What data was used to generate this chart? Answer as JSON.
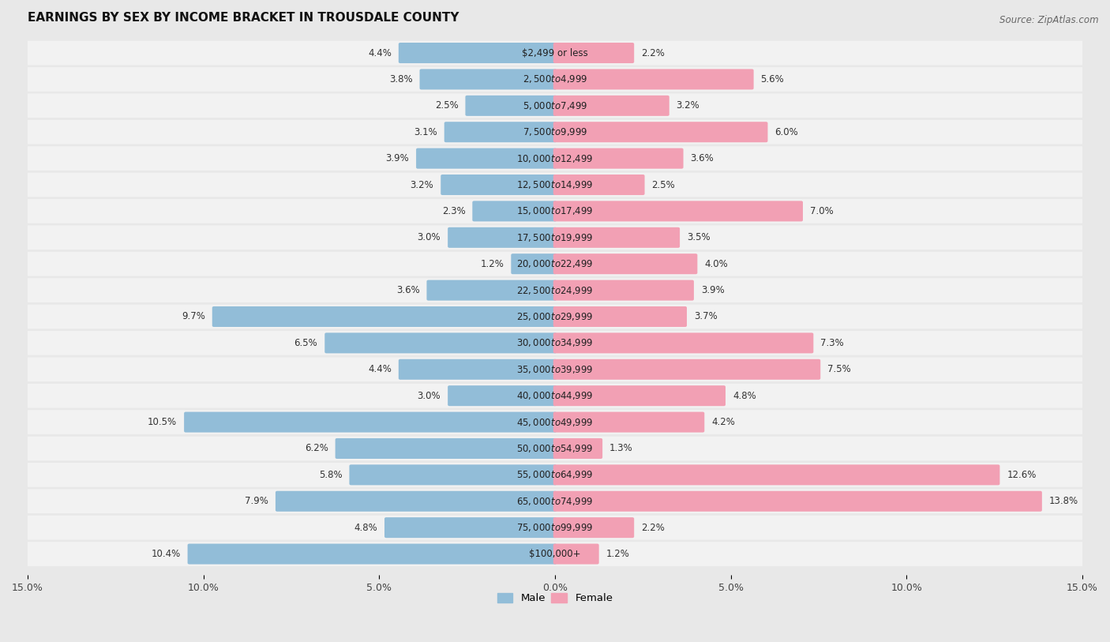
{
  "title": "EARNINGS BY SEX BY INCOME BRACKET IN TROUSDALE COUNTY",
  "source": "Source: ZipAtlas.com",
  "categories": [
    "$2,499 or less",
    "$2,500 to $4,999",
    "$5,000 to $7,499",
    "$7,500 to $9,999",
    "$10,000 to $12,499",
    "$12,500 to $14,999",
    "$15,000 to $17,499",
    "$17,500 to $19,999",
    "$20,000 to $22,499",
    "$22,500 to $24,999",
    "$25,000 to $29,999",
    "$30,000 to $34,999",
    "$35,000 to $39,999",
    "$40,000 to $44,999",
    "$45,000 to $49,999",
    "$50,000 to $54,999",
    "$55,000 to $64,999",
    "$65,000 to $74,999",
    "$75,000 to $99,999",
    "$100,000+"
  ],
  "male_values": [
    4.4,
    3.8,
    2.5,
    3.1,
    3.9,
    3.2,
    2.3,
    3.0,
    1.2,
    3.6,
    9.7,
    6.5,
    4.4,
    3.0,
    10.5,
    6.2,
    5.8,
    7.9,
    4.8,
    10.4
  ],
  "female_values": [
    2.2,
    5.6,
    3.2,
    6.0,
    3.6,
    2.5,
    7.0,
    3.5,
    4.0,
    3.9,
    3.7,
    7.3,
    7.5,
    4.8,
    4.2,
    1.3,
    12.6,
    13.8,
    2.2,
    1.2
  ],
  "male_color": "#92bdd8",
  "female_color": "#f2a0b4",
  "male_label": "Male",
  "female_label": "Female",
  "xlim": 15.0,
  "bg_color": "#e8e8e8",
  "row_color": "#f2f2f2",
  "title_fontsize": 11,
  "tick_fontsize": 9,
  "label_fontsize": 8.5,
  "value_fontsize": 8.5
}
